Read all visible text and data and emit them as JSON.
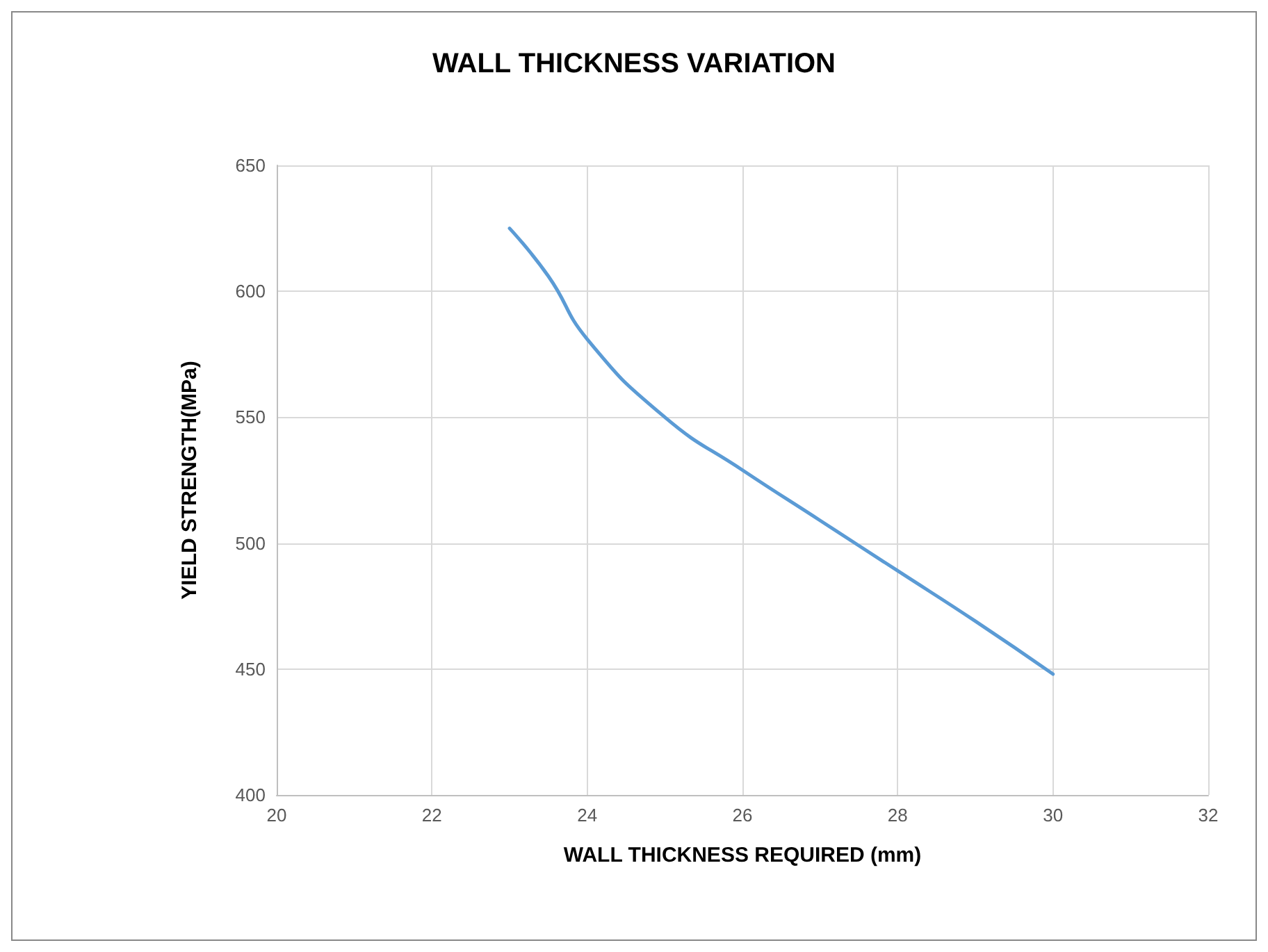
{
  "chart_data": {
    "type": "line",
    "title": "WALL THICKNESS VARIATION",
    "xlabel": "WALL THICKNESS REQUIRED (mm)",
    "ylabel": "YIELD STRENGTH(MPa)",
    "x": [
      23,
      23.5,
      24,
      25,
      26,
      27,
      28,
      29,
      30
    ],
    "series": [
      {
        "color": "#5b9bd5",
        "values": [
          625,
          606,
          581,
          550,
          529,
          509,
          489,
          469,
          448
        ]
      }
    ],
    "xlim": [
      20,
      32
    ],
    "xticks": [
      20,
      22,
      24,
      26,
      28,
      30,
      32
    ],
    "ylim": [
      400,
      650
    ],
    "yticks": [
      400,
      450,
      500,
      550,
      600,
      650
    ],
    "grid": true,
    "marker": "none",
    "line_style": "solid"
  }
}
